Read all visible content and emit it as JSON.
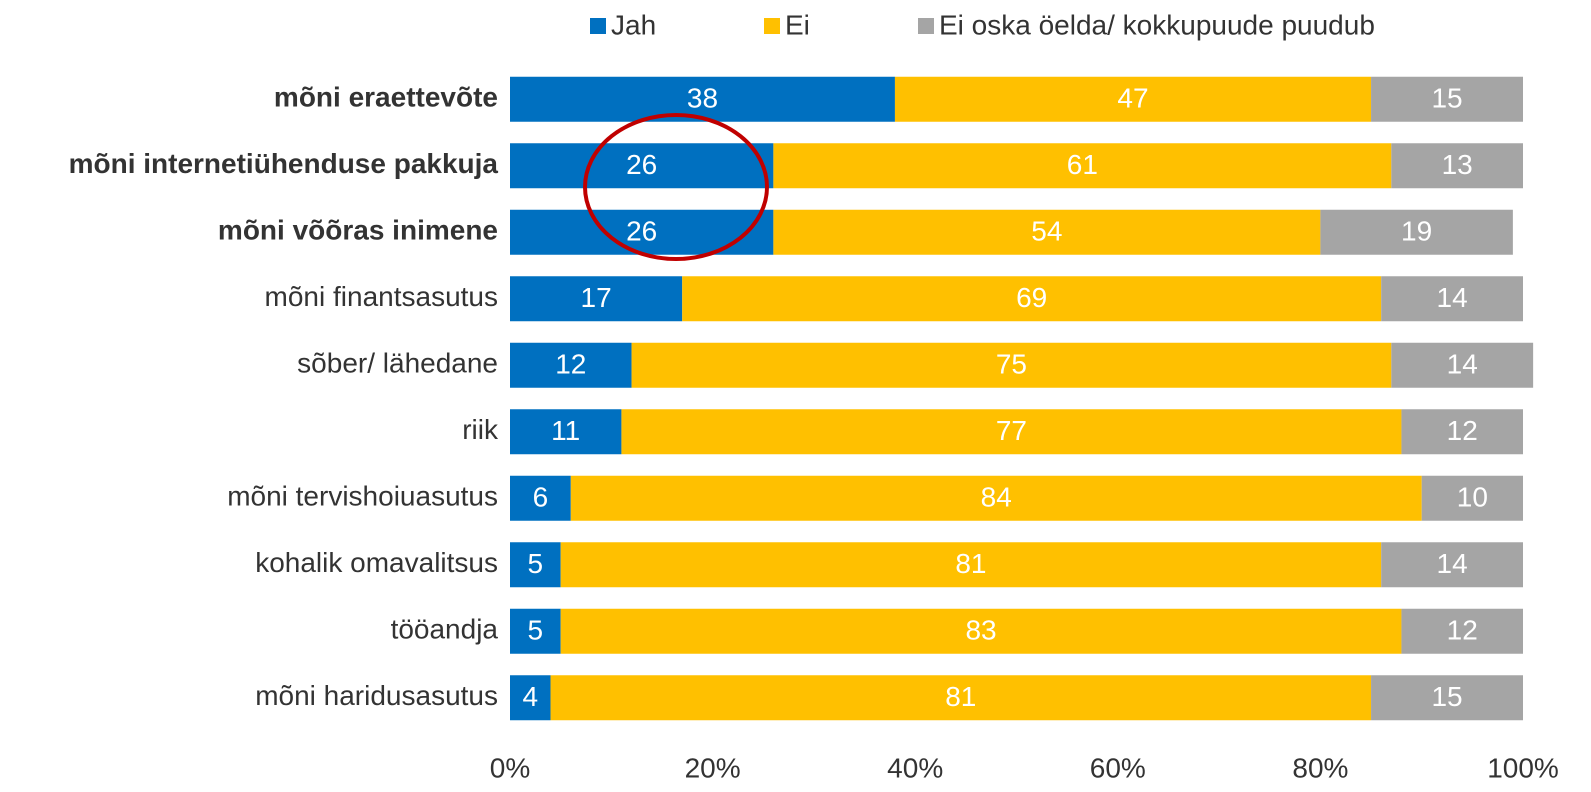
{
  "chart_data": {
    "type": "stacked-barh",
    "categories": [
      "mõni eraettevõte",
      "mõni internetiühenduse pakkuja",
      "mõni võõras inimene",
      "mõni finantsasutus",
      "sõber/ lähedane",
      "riik",
      "mõni tervishoiuasutus",
      "kohalik omavalitsus",
      "tööandja",
      "mõni haridusasutus"
    ],
    "bold": [
      true,
      true,
      true,
      false,
      false,
      false,
      false,
      false,
      false,
      false
    ],
    "series": [
      {
        "name": "Jah",
        "color": "#0070c0",
        "values": [
          38,
          26,
          26,
          17,
          12,
          11,
          6,
          5,
          5,
          4
        ]
      },
      {
        "name": "Ei",
        "color": "#ffc000",
        "values": [
          47,
          61,
          54,
          69,
          75,
          77,
          84,
          81,
          83,
          81
        ]
      },
      {
        "name": "Ei oska öelda/ kokkupuude puudub",
        "color": "#a5a5a5",
        "values": [
          15,
          13,
          19,
          14,
          14,
          12,
          10,
          14,
          12,
          15
        ]
      }
    ],
    "xlim": [
      0,
      100
    ],
    "xticks": [
      {
        "value": 0,
        "label": "0%"
      },
      {
        "value": 20,
        "label": "20%"
      },
      {
        "value": 40,
        "label": "40%"
      },
      {
        "value": 60,
        "label": "60%"
      },
      {
        "value": 80,
        "label": "80%"
      },
      {
        "value": 100,
        "label": "100%"
      }
    ],
    "legend": "top"
  }
}
